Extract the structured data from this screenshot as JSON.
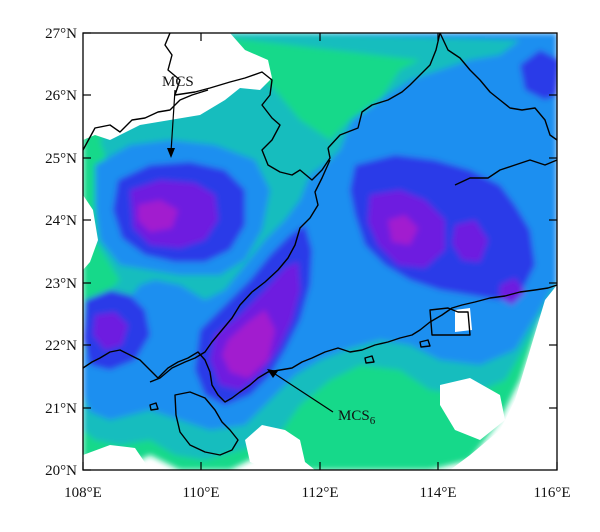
{
  "map": {
    "lat_labels": [
      "27°N",
      "26°N",
      "25°N",
      "24°N",
      "23°N",
      "22°N",
      "21°N",
      "20°N"
    ],
    "lon_labels": [
      "108°E",
      "110°E",
      "112°E",
      "114°E",
      "116°E"
    ],
    "lat_range": [
      20,
      27
    ],
    "lon_range": [
      108,
      116
    ],
    "annotations": [
      {
        "name": "mcs-upper-label",
        "text": "MCS",
        "sub": "",
        "lat": 25.0,
        "lon": 109.5
      },
      {
        "name": "mcs6-label",
        "text": "MCS",
        "sub": "6",
        "lat": 21.6,
        "lon": 111.0
      }
    ],
    "colors": {
      "level1": "#19d98a",
      "level2": "#12bdbe",
      "level3": "#1f8ff0",
      "level4": "#2c3be8",
      "level5": "#6e1ee0",
      "level6": "#a21ecf",
      "boundary": "#000000",
      "frame": "#000000"
    }
  }
}
